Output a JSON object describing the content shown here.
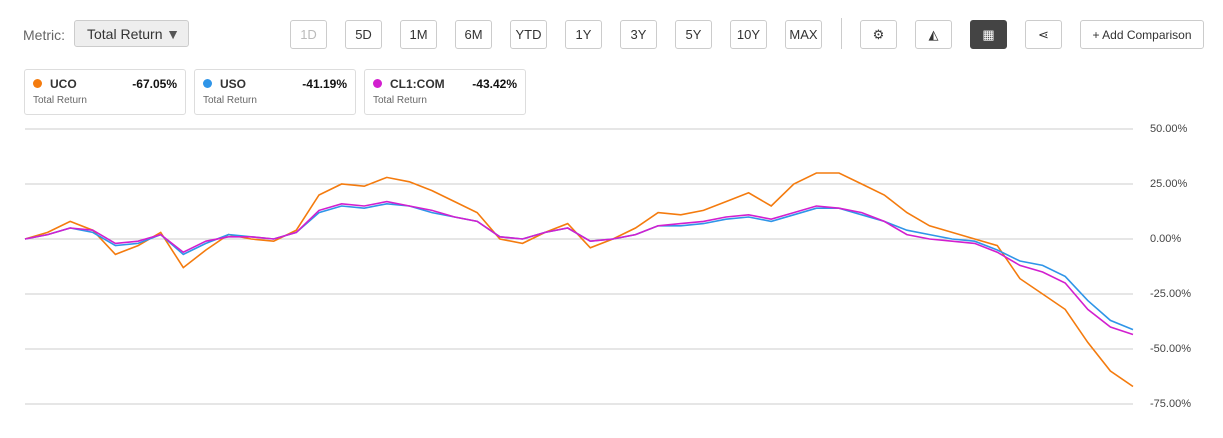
{
  "toolbar": {
    "metric_label": "Metric:",
    "metric_value": "Total Return",
    "ranges": [
      "1D",
      "5D",
      "1M",
      "6M",
      "YTD",
      "1Y",
      "3Y",
      "5Y",
      "10Y",
      "MAX"
    ],
    "add_comparison": "+ Add Comparison"
  },
  "chart_data": {
    "type": "line",
    "grid": true,
    "ylim": [
      -75,
      50
    ],
    "yticks": [
      {
        "value": 50,
        "label": "50.00%"
      },
      {
        "value": 25,
        "label": "25.00%"
      },
      {
        "value": 0,
        "label": "0.00%"
      },
      {
        "value": -25,
        "label": "-25.00%"
      },
      {
        "value": -50,
        "label": "-50.00%"
      },
      {
        "value": -75,
        "label": "-75.00%"
      }
    ],
    "categories": [
      null,
      null,
      null,
      null,
      null,
      null,
      null,
      null,
      null,
      null,
      null,
      null,
      null,
      null,
      null,
      null,
      null,
      null,
      null,
      null,
      null,
      null,
      null,
      null,
      null,
      null,
      null,
      null,
      null,
      null,
      null,
      null,
      null,
      null,
      null,
      null,
      null,
      null,
      null,
      null,
      null,
      null,
      null,
      null,
      null,
      null,
      null,
      null,
      null,
      null
    ],
    "series": [
      {
        "name": "UCO",
        "color": "#f47b0e",
        "summary": -67.05,
        "summary_label": "-67.05%",
        "summary_caption": "Total Return",
        "values": [
          0,
          3,
          8,
          4,
          -7,
          -3,
          3,
          -13,
          -5,
          2,
          0,
          -1,
          4,
          20,
          25,
          24,
          28,
          26,
          22,
          17,
          12,
          0,
          -2,
          3,
          7,
          -4,
          0,
          5,
          12,
          11,
          13,
          17,
          21,
          15,
          25,
          30,
          30,
          25,
          20,
          12,
          6,
          3,
          0,
          -3,
          -18,
          -25,
          -32,
          -47,
          -60,
          -67.05
        ]
      },
      {
        "name": "USO",
        "color": "#2f95e8",
        "summary": -41.19,
        "summary_label": "-41.19%",
        "summary_caption": "Total Return",
        "values": [
          0,
          2,
          5,
          3,
          -3,
          -2,
          2,
          -7,
          -2,
          2,
          1,
          0,
          3,
          12,
          15,
          14,
          16,
          15,
          12,
          10,
          8,
          1,
          0,
          3,
          5,
          -1,
          0,
          2,
          6,
          6,
          7,
          9,
          10,
          8,
          11,
          14,
          14,
          11,
          8,
          4,
          2,
          0,
          -1,
          -5,
          -10,
          -12,
          -17,
          -28,
          -37,
          -41.19
        ]
      },
      {
        "name": "CL1:COM",
        "color": "#d21fcf",
        "summary": -43.42,
        "summary_label": "-43.42%",
        "summary_caption": "Total Return",
        "values": [
          0,
          2,
          5,
          4,
          -2,
          -1,
          2,
          -6,
          -1,
          1,
          1,
          0,
          3,
          13,
          16,
          15,
          17,
          15,
          13,
          10,
          8,
          1,
          0,
          3,
          5,
          -1,
          0,
          2,
          6,
          7,
          8,
          10,
          11,
          9,
          12,
          15,
          14,
          12,
          8,
          2,
          0,
          -1,
          -2,
          -6,
          -12,
          -15,
          -20,
          -32,
          -40,
          -43.42
        ]
      }
    ]
  }
}
